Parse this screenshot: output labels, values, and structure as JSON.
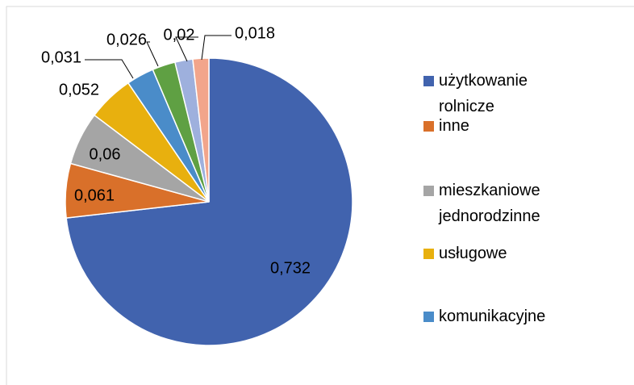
{
  "chart_data": {
    "type": "pie",
    "categories": [
      "użytkowanie rolnicze",
      "inne",
      "mieszkaniowe jednorodzinne",
      "usługowe",
      "komunikacyjne",
      null,
      null,
      null
    ],
    "values": [
      0.732,
      0.061,
      0.06,
      0.052,
      0.031,
      0.026,
      0.02,
      0.018
    ],
    "value_labels": [
      "0,732",
      "0,061",
      "0,06",
      "0,052",
      "0,031",
      "0,026",
      "0,02",
      "0,018"
    ],
    "colors": [
      "#4163ae",
      "#d9702a",
      "#a5a5a5",
      "#e8b00e",
      "#4a8cc9",
      "#5fa043",
      "#9eb0dd",
      "#f2a58b"
    ],
    "legend": "right"
  }
}
